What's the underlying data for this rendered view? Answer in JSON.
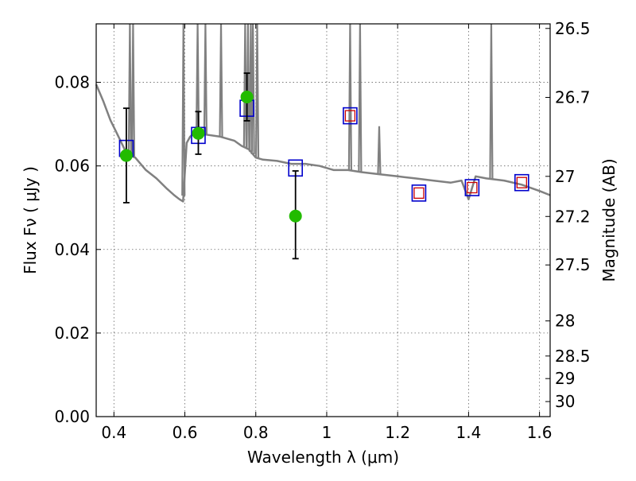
{
  "chart_data": {
    "type": "scatter",
    "xlabel": "Wavelength  λ (μm)",
    "ylabel": "Flux  Fν  ( μJy )",
    "y2label": "Magnitude (AB)",
    "xlim": [
      0.35,
      1.63
    ],
    "ylim": [
      0.0,
      0.094
    ],
    "grid": true,
    "x_ticks": [
      0.4,
      0.6,
      0.8,
      1,
      1.2,
      1.4,
      1.6
    ],
    "y_ticks": [
      0.0,
      0.02,
      0.04,
      0.06,
      0.08
    ],
    "y2_ticks": [
      {
        "label": "26.5",
        "flux": 0.0929
      },
      {
        "label": "26.7",
        "flux": 0.0764
      },
      {
        "label": "27",
        "flux": 0.0575
      },
      {
        "label": "27.2",
        "flux": 0.0479
      },
      {
        "label": "27.5",
        "flux": 0.0363
      },
      {
        "label": "28",
        "flux": 0.0229
      },
      {
        "label": "28.5",
        "flux": 0.0145
      },
      {
        "label": "29",
        "flux": 0.0091
      },
      {
        "label": "30",
        "flux": 0.0036
      }
    ],
    "colors": {
      "sed": "#808080",
      "observed": "#22bb00",
      "model_blue": "#0000cc",
      "model_red": "#cc0000",
      "errorbar": "#000000",
      "grid": "#666666"
    },
    "series": [
      {
        "kind": "model_sed",
        "x": [
          0.35,
          0.37,
          0.39,
          0.41,
          0.43,
          0.445,
          0.46,
          0.49,
          0.52,
          0.55,
          0.57,
          0.585,
          0.595,
          0.605,
          0.615,
          0.63,
          0.66,
          0.7,
          0.74,
          0.76,
          0.78,
          0.8,
          0.82,
          0.86,
          0.9,
          0.94,
          0.98,
          1.02,
          1.06,
          1.1,
          1.15,
          1.2,
          1.25,
          1.3,
          1.35,
          1.38,
          1.4,
          1.42,
          1.45,
          1.5,
          1.55,
          1.6,
          1.63
        ],
        "y": [
          0.0795,
          0.0755,
          0.071,
          0.0675,
          0.064,
          0.0625,
          0.062,
          0.059,
          0.057,
          0.0545,
          0.053,
          0.052,
          0.0515,
          0.0655,
          0.067,
          0.0682,
          0.0675,
          0.067,
          0.066,
          0.0648,
          0.064,
          0.062,
          0.0615,
          0.0612,
          0.0605,
          0.0605,
          0.06,
          0.059,
          0.059,
          0.0585,
          0.058,
          0.0575,
          0.057,
          0.0565,
          0.056,
          0.0565,
          0.052,
          0.0575,
          0.057,
          0.0565,
          0.0555,
          0.054,
          0.053
        ]
      },
      {
        "kind": "emission_lines",
        "x": [
          0.445,
          0.454,
          0.596,
          0.636,
          0.658,
          0.702,
          0.77,
          0.778,
          0.786,
          0.792,
          0.804,
          1.066,
          1.094,
          1.148,
          1.464
        ],
        "y_top": [
          0.094,
          0.094,
          0.094,
          0.094,
          0.094,
          0.094,
          0.094,
          0.094,
          0.094,
          0.094,
          0.094,
          0.094,
          0.094,
          0.0695,
          0.094
        ]
      },
      {
        "name": "",
        "kind": "model_blue_squares",
        "x": [
          0.435,
          0.638,
          0.775,
          0.912,
          1.066,
          1.26,
          1.41,
          1.55
        ],
        "y": [
          0.0642,
          0.0673,
          0.0738,
          0.0595,
          0.072,
          0.0535,
          0.0548,
          0.056
        ]
      },
      {
        "name": "",
        "kind": "model_red_squares",
        "x": [
          1.066,
          1.26,
          1.41,
          1.55
        ],
        "y": [
          0.072,
          0.0535,
          0.0548,
          0.056
        ]
      },
      {
        "name": "",
        "kind": "observed_points",
        "x": [
          0.435,
          0.638,
          0.775,
          0.912
        ],
        "y": [
          0.0625,
          0.0678,
          0.0765,
          0.048
        ],
        "yerr_low": [
          0.0512,
          0.0628,
          0.0708,
          0.0378
        ],
        "yerr_high": [
          0.0738,
          0.073,
          0.0822,
          0.0588
        ]
      }
    ]
  }
}
